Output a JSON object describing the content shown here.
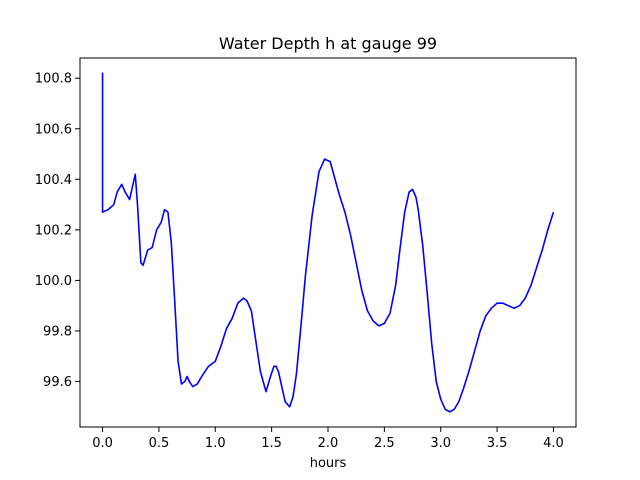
{
  "chart_data": {
    "type": "line",
    "title": "Water Depth h at gauge 99",
    "xlabel": "hours",
    "ylabel": "",
    "xlim": [
      -0.2,
      4.2
    ],
    "ylim": [
      99.42,
      100.88
    ],
    "grid": false,
    "xticks": [
      0.0,
      0.5,
      1.0,
      1.5,
      2.0,
      2.5,
      3.0,
      3.5,
      4.0
    ],
    "xtick_labels": [
      "0.0",
      "0.5",
      "1.0",
      "1.5",
      "2.0",
      "2.5",
      "3.0",
      "3.5",
      "4.0"
    ],
    "yticks": [
      99.6,
      99.8,
      100.0,
      100.2,
      100.4,
      100.6,
      100.8
    ],
    "ytick_labels": [
      "99.6",
      "99.8",
      "100.0",
      "100.2",
      "100.4",
      "100.6",
      "100.8"
    ],
    "series": [
      {
        "color": "#0000ff",
        "x": [
          0.0,
          0.0,
          0.0,
          0.05,
          0.1,
          0.13,
          0.17,
          0.2,
          0.24,
          0.27,
          0.29,
          0.31,
          0.34,
          0.36,
          0.4,
          0.44,
          0.48,
          0.52,
          0.55,
          0.58,
          0.61,
          0.64,
          0.67,
          0.7,
          0.73,
          0.75,
          0.77,
          0.8,
          0.84,
          0.88,
          0.94,
          1.0,
          1.05,
          1.1,
          1.15,
          1.2,
          1.25,
          1.28,
          1.32,
          1.36,
          1.4,
          1.45,
          1.49,
          1.52,
          1.54,
          1.56,
          1.59,
          1.62,
          1.66,
          1.69,
          1.72,
          1.76,
          1.8,
          1.86,
          1.92,
          1.97,
          2.02,
          2.05,
          2.1,
          2.15,
          2.2,
          2.25,
          2.3,
          2.35,
          2.4,
          2.45,
          2.5,
          2.55,
          2.6,
          2.64,
          2.68,
          2.72,
          2.75,
          2.78,
          2.8,
          2.84,
          2.88,
          2.92,
          2.96,
          3.0,
          3.04,
          3.08,
          3.12,
          3.16,
          3.2,
          3.25,
          3.3,
          3.35,
          3.4,
          3.45,
          3.5,
          3.55,
          3.6,
          3.65,
          3.7,
          3.75,
          3.8,
          3.85,
          3.9,
          3.95,
          4.0
        ],
        "y": [
          100.27,
          100.82,
          100.27,
          100.28,
          100.3,
          100.35,
          100.38,
          100.35,
          100.32,
          100.38,
          100.42,
          100.3,
          100.07,
          100.06,
          100.12,
          100.13,
          100.2,
          100.23,
          100.28,
          100.27,
          100.15,
          99.92,
          99.68,
          99.59,
          99.6,
          99.62,
          99.6,
          99.58,
          99.59,
          99.62,
          99.66,
          99.68,
          99.74,
          99.81,
          99.85,
          99.91,
          99.93,
          99.92,
          99.88,
          99.76,
          99.64,
          99.56,
          99.62,
          99.66,
          99.66,
          99.64,
          99.58,
          99.52,
          99.5,
          99.54,
          99.63,
          99.82,
          100.02,
          100.26,
          100.43,
          100.48,
          100.47,
          100.42,
          100.34,
          100.27,
          100.18,
          100.07,
          99.96,
          99.88,
          99.84,
          99.82,
          99.83,
          99.87,
          99.98,
          100.13,
          100.27,
          100.35,
          100.36,
          100.33,
          100.28,
          100.14,
          99.95,
          99.75,
          99.6,
          99.53,
          99.49,
          99.48,
          99.49,
          99.52,
          99.57,
          99.64,
          99.72,
          99.8,
          99.86,
          99.89,
          99.91,
          99.91,
          99.9,
          99.89,
          99.9,
          99.93,
          99.98,
          100.05,
          100.12,
          100.2,
          100.27
        ]
      }
    ]
  }
}
